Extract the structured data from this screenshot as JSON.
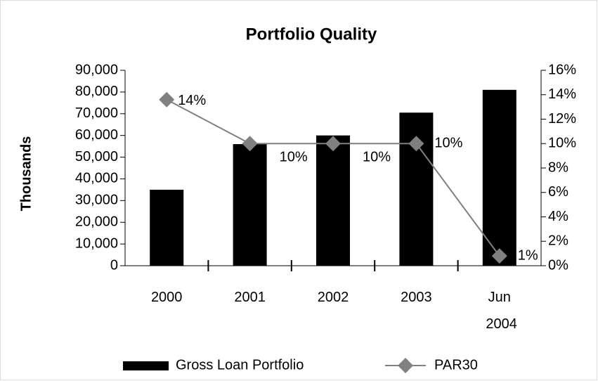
{
  "chart_data": {
    "type": "bar_line",
    "title": "Portfolio Quality",
    "ylabel": "Thousands",
    "categories": [
      "2000",
      "2001",
      "2002",
      "2003",
      "Jun 2004"
    ],
    "series": [
      {
        "name": "Gross Loan Portfolio",
        "color": "#000000",
        "type": "bar",
        "values": [
          35000,
          56000,
          60000,
          70500,
          81000
        ]
      },
      {
        "name": "PAR30",
        "color": "#808080",
        "type": "line",
        "axis": "y2",
        "values": [
          13.6,
          10,
          10,
          10,
          0.8
        ],
        "value_labels": [
          "14%",
          "10%",
          "10%",
          "10%",
          "1%"
        ]
      }
    ],
    "ylim": [
      0,
      90000
    ],
    "yticks": [
      0,
      {
        "value": 10000,
        "label": "10,000"
      },
      {
        "value": 20000,
        "label": "20,000"
      },
      {
        "value": 30000,
        "label": "30,000"
      },
      {
        "value": 40000,
        "label": "40,000"
      },
      {
        "value": 50000,
        "label": "50,000"
      },
      {
        "value": 60000,
        "label": "60,000"
      },
      {
        "value": 70000,
        "label": "70,000"
      },
      {
        "value": 80000,
        "label": "80,000"
      },
      {
        "value": 90000,
        "label": "90,000"
      }
    ],
    "y2lim": [
      0,
      16
    ],
    "y2ticks": [
      {
        "value": 0,
        "label": "0%"
      },
      {
        "value": 2,
        "label": "2%"
      },
      {
        "value": 4,
        "label": "4%"
      },
      {
        "value": 6,
        "label": "6%"
      },
      {
        "value": 8,
        "label": "8%"
      },
      {
        "value": 10,
        "label": "10%"
      },
      {
        "value": 12,
        "label": "12%"
      },
      {
        "value": 14,
        "label": "14%"
      },
      {
        "value": 16,
        "label": "16%"
      }
    ],
    "legend": "bottom"
  }
}
